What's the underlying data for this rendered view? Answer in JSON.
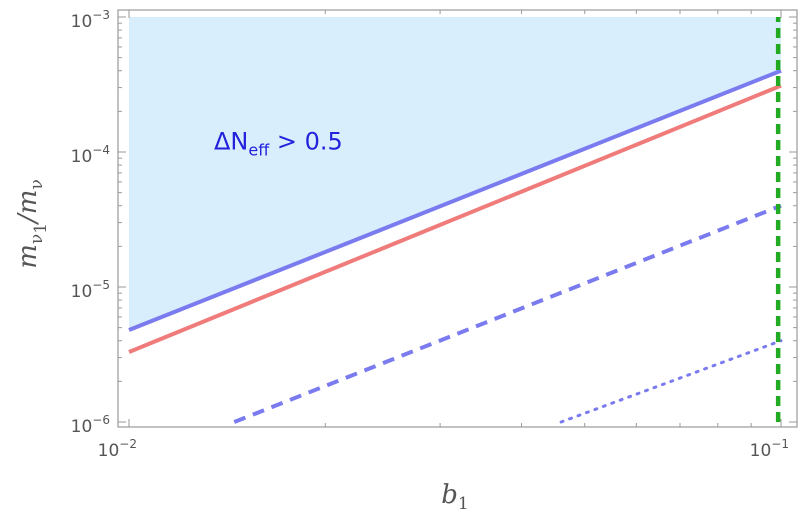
{
  "chart_data": {
    "type": "line",
    "title": "",
    "xlabel": {
      "main": "b",
      "sub": "1"
    },
    "ylabel": {
      "main": "m",
      "sub1": "ν",
      "sub2": "1",
      "slash": "/",
      "main2": "m",
      "sub3": "ν"
    },
    "xscale": "log",
    "yscale": "log",
    "xlim": [
      0.01,
      0.1
    ],
    "ylim": [
      1e-06,
      0.001
    ],
    "grid": false,
    "legend": "none",
    "x_ticks": [
      {
        "base": "10",
        "exp": "−2",
        "value": 0.01
      },
      {
        "base": "10",
        "exp": "−1",
        "value": 0.1
      }
    ],
    "y_ticks": [
      {
        "base": "10",
        "exp": "−6",
        "value": 1e-06
      },
      {
        "base": "10",
        "exp": "−5",
        "value": 1e-05
      },
      {
        "base": "10",
        "exp": "−4",
        "value": 0.0001
      },
      {
        "base": "10",
        "exp": "−3",
        "value": 0.001
      }
    ],
    "annotation": {
      "prefix": "ΔN",
      "sub": "eff",
      "suffix": " > 0.5",
      "x": 0.0135,
      "y": 0.00012,
      "color": "#2222dd"
    },
    "shaded_region": {
      "color": "#d9eefc",
      "bounded_below_by": "blue-solid"
    },
    "series": [
      {
        "style": "solid",
        "color": "#7b7bf0",
        "x": [
          0.01,
          0.1
        ],
        "y": [
          4.8e-06,
          0.0004
        ]
      },
      {
        "style": "solid",
        "color": "#f07b7b",
        "x": [
          0.01,
          0.1
        ],
        "y": [
          3.3e-06,
          0.00031
        ]
      },
      {
        "style": "dashed",
        "color": "#7b7bf0",
        "x": [
          0.0145,
          0.1
        ],
        "y": [
          1e-06,
          4e-05
        ]
      },
      {
        "style": "dotted",
        "color": "#7b7bf0",
        "x": [
          0.046,
          0.1
        ],
        "y": [
          1e-06,
          4e-06
        ]
      },
      {
        "style": "dashed",
        "color": "#22aa22",
        "x": [
          0.099,
          0.099
        ],
        "y": [
          1e-06,
          0.001
        ]
      }
    ]
  }
}
